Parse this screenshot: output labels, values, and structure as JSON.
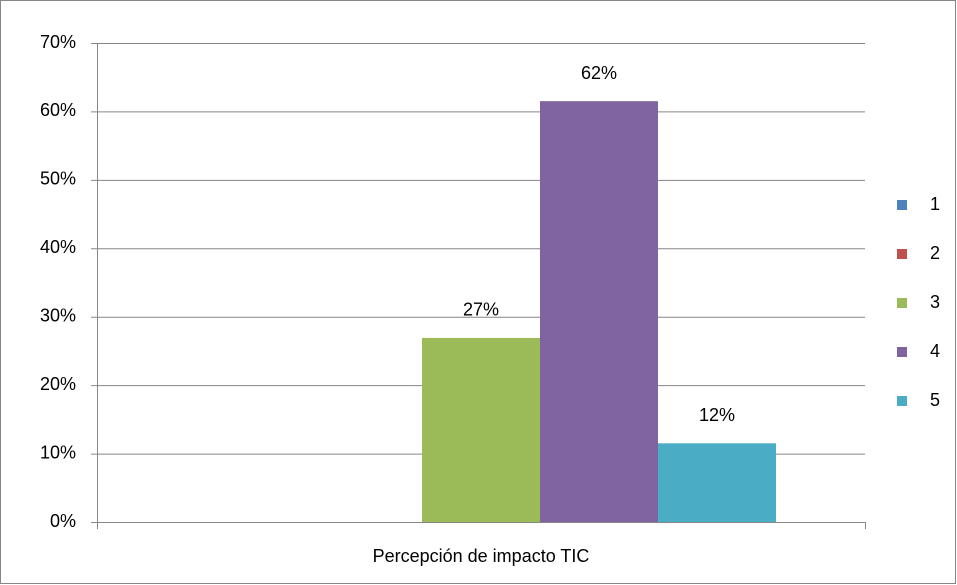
{
  "chart_data": {
    "type": "bar",
    "categories": [
      "Percepción de impacto TIC"
    ],
    "series": [
      {
        "name": "1",
        "color": "#4f81bd",
        "values": [
          0
        ]
      },
      {
        "name": "2",
        "color": "#c0504d",
        "values": [
          0
        ]
      },
      {
        "name": "3",
        "color": "#9bbb59",
        "values": [
          26.9
        ],
        "value_labels": [
          "27%"
        ]
      },
      {
        "name": "4",
        "color": "#8064a2",
        "values": [
          61.5
        ],
        "value_labels": [
          "62%"
        ]
      },
      {
        "name": "5",
        "color": "#4bacc6",
        "values": [
          11.5
        ],
        "value_labels": [
          "12%"
        ]
      }
    ],
    "ylim": [
      0,
      70
    ],
    "yticks": [
      {
        "value": 0,
        "label": "0%"
      },
      {
        "value": 10,
        "label": "10%"
      },
      {
        "value": 20,
        "label": "20%"
      },
      {
        "value": 30,
        "label": "30%"
      },
      {
        "value": 40,
        "label": "40%"
      },
      {
        "value": 50,
        "label": "50%"
      },
      {
        "value": 60,
        "label": "60%"
      },
      {
        "value": 70,
        "label": "70%"
      }
    ],
    "grid": true,
    "legend": "right"
  }
}
